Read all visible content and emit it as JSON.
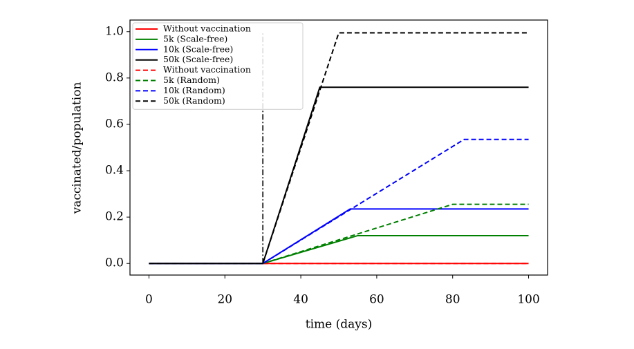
{
  "chart_data": {
    "type": "line",
    "xlabel": "time (days)",
    "ylabel": "vaccinated/population",
    "xlim": [
      -5,
      105
    ],
    "xticks": [
      0,
      20,
      40,
      60,
      80,
      100
    ],
    "ylim": [
      -0.05,
      1.05
    ],
    "yticks": [
      {
        "value": 0,
        "label": "0.0"
      },
      0.2,
      0.4,
      0.6,
      0.8,
      {
        "value": 1,
        "label": "1.0"
      }
    ],
    "vline": 30,
    "legend": "upper left",
    "series": [
      {
        "name": "Without vaccination",
        "color": "#ff0000",
        "dash": false,
        "x": [
          0,
          100
        ],
        "values": [
          0,
          0
        ]
      },
      {
        "name": "5k (Scale-free)",
        "color": "#008000",
        "dash": false,
        "x": [
          0,
          30,
          55,
          100
        ],
        "values": [
          0,
          0,
          0.12,
          0.12
        ]
      },
      {
        "name": "10k (Scale-free)",
        "color": "#0000ff",
        "dash": false,
        "x": [
          0,
          30,
          53,
          100
        ],
        "values": [
          0,
          0,
          0.235,
          0.235
        ]
      },
      {
        "name": "50k (Scale-free)",
        "color": "#000000",
        "dash": false,
        "x": [
          0,
          30,
          45,
          100
        ],
        "values": [
          0,
          0,
          0.76,
          0.76
        ]
      },
      {
        "name": "Without vaccination",
        "color": "#ff0000",
        "dash": true,
        "x": [
          0,
          100
        ],
        "values": [
          0,
          0
        ]
      },
      {
        "name": "5k (Random)",
        "color": "#008000",
        "dash": true,
        "x": [
          0,
          30,
          80,
          100
        ],
        "values": [
          0,
          0,
          0.255,
          0.255
        ]
      },
      {
        "name": "10k (Random)",
        "color": "#0000ff",
        "dash": true,
        "x": [
          0,
          30,
          83,
          100
        ],
        "values": [
          0,
          0,
          0.535,
          0.535
        ]
      },
      {
        "name": "50k (Random)",
        "color": "#000000",
        "dash": true,
        "x": [
          0,
          30,
          50,
          100
        ],
        "values": [
          0,
          0,
          0.995,
          0.995
        ]
      }
    ]
  }
}
